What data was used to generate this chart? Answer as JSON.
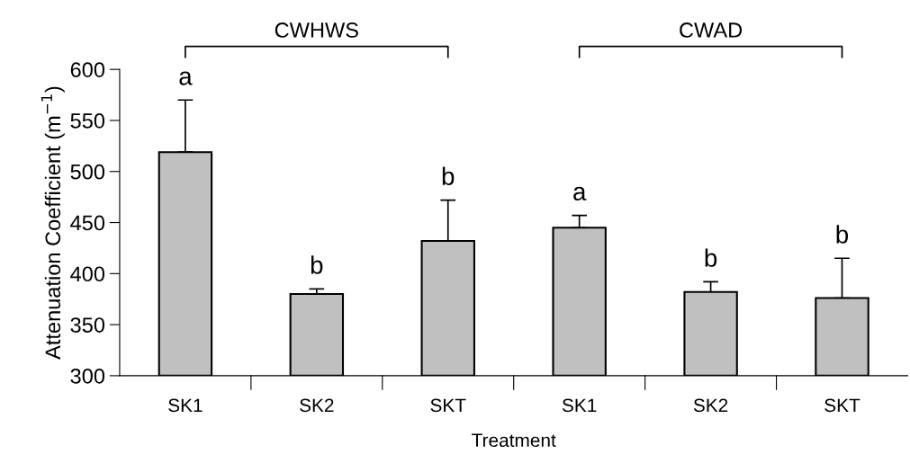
{
  "chart_data": {
    "type": "bar",
    "xlabel": "Treatment",
    "ylabel": "Attenuation Coefficient (m$^{−1}$)",
    "categories": [
      "SK1",
      "SK2",
      "SKT",
      "SK1",
      "SK2",
      "SKT"
    ],
    "values": [
      519,
      380,
      432,
      445,
      382,
      376
    ],
    "errors": [
      [
        519,
        570
      ],
      [
        380,
        385
      ],
      [
        432,
        472
      ],
      [
        445,
        457
      ],
      [
        382,
        392
      ],
      [
        376,
        415
      ]
    ],
    "color": "#c0c0c0",
    "ylim": [
      300,
      600
    ],
    "yticks": [
      300,
      350,
      400,
      450,
      500,
      550,
      600
    ],
    "grid": false,
    "annotations": [
      "CWHWS",
      "CWAD",
      {
        "text": "a",
        "y": 570
      },
      {
        "text": "b",
        "y": 385
      },
      {
        "text": "b",
        "y": 472
      },
      {
        "text": "a",
        "y": 457
      },
      {
        "text": "b",
        "y": 392
      },
      {
        "text": "b",
        "y": 415
      }
    ]
  }
}
